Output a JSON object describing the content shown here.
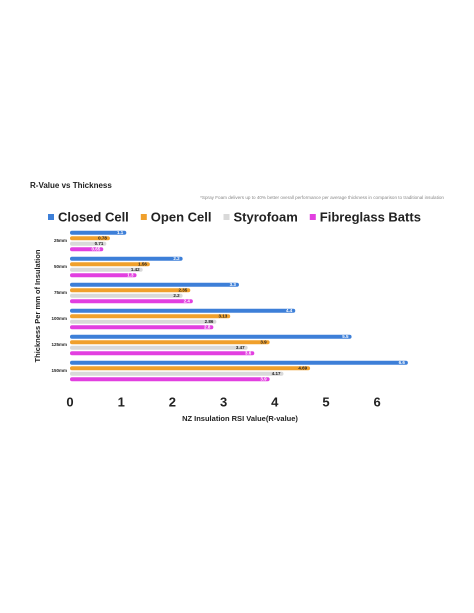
{
  "chart_data": {
    "type": "hbar",
    "title": "R-Value vs Thickness",
    "subtitle": "*Spray Foam delivers up to 40% better overall performance per average thickness in comparison to traditional insulation",
    "x_label": "NZ Insulation RSI Value(R-value)",
    "y_label": "Thickness Per mm of Insulation",
    "categories": [
      "25mm",
      "50mm",
      "75mm",
      "100mm",
      "125mm",
      "150mm"
    ],
    "series": [
      {
        "name": "Closed Cell",
        "color": "#3d7fd8",
        "values": [
          1.1,
          2.2,
          3.3,
          4.4,
          5.5,
          6.6
        ]
      },
      {
        "name": "Open Cell",
        "color": "#f0a02c",
        "values": [
          0.78,
          1.56,
          2.35,
          3.13,
          3.9,
          4.69
        ]
      },
      {
        "name": "Styrofoam",
        "color": "#d9d9d9",
        "values": [
          0.71,
          1.42,
          2.2,
          2.86,
          3.47,
          4.17
        ]
      },
      {
        "name": "Fibreglass Batts",
        "color": "#e23fe0",
        "values": [
          0.65,
          1.3,
          2.4,
          2.8,
          3.6,
          3.9
        ]
      }
    ],
    "xlim": [
      0,
      6.7
    ],
    "xticks": [
      0,
      1,
      2,
      3,
      4,
      5,
      6
    ],
    "grid": false,
    "legend": "top"
  }
}
